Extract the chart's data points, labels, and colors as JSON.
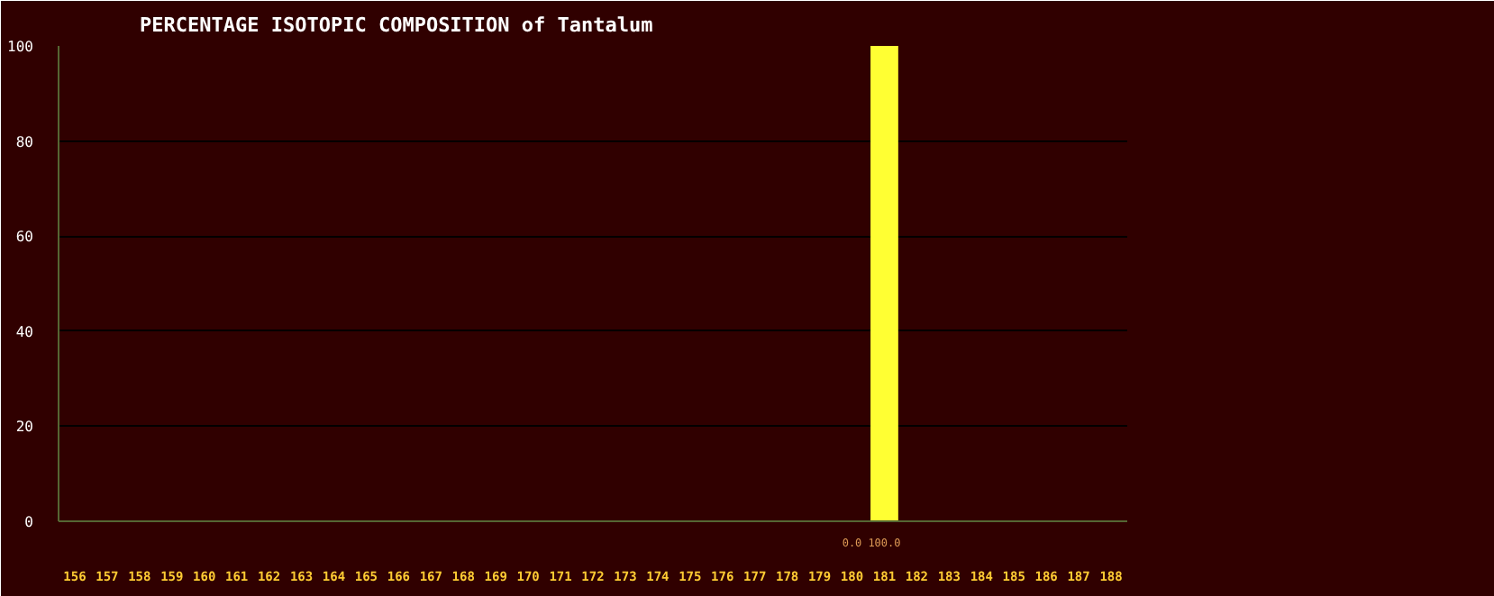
{
  "chart_data": {
    "type": "bar",
    "title": "PERCENTAGE ISOTOPIC COMPOSITION of Tantalum",
    "categories": [
      "156",
      "157",
      "158",
      "159",
      "160",
      "161",
      "162",
      "163",
      "164",
      "165",
      "166",
      "167",
      "168",
      "169",
      "170",
      "171",
      "172",
      "173",
      "174",
      "175",
      "176",
      "177",
      "178",
      "179",
      "180",
      "181",
      "182",
      "183",
      "184",
      "185",
      "186",
      "187",
      "188"
    ],
    "values": [
      null,
      null,
      null,
      null,
      null,
      null,
      null,
      null,
      null,
      null,
      null,
      null,
      null,
      null,
      null,
      null,
      null,
      null,
      null,
      null,
      null,
      null,
      null,
      null,
      0.0,
      100.0,
      null,
      null,
      null,
      null,
      null,
      null,
      null
    ],
    "value_labels": [
      null,
      null,
      null,
      null,
      null,
      null,
      null,
      null,
      null,
      null,
      null,
      null,
      null,
      null,
      null,
      null,
      null,
      null,
      null,
      null,
      null,
      null,
      null,
      null,
      "0.0",
      "100.0",
      null,
      null,
      null,
      null,
      null,
      null,
      null
    ],
    "color": "#ffff33",
    "ylim": [
      0,
      100
    ],
    "yticks": [
      0,
      20,
      40,
      60,
      80,
      100
    ],
    "grid": "y"
  }
}
